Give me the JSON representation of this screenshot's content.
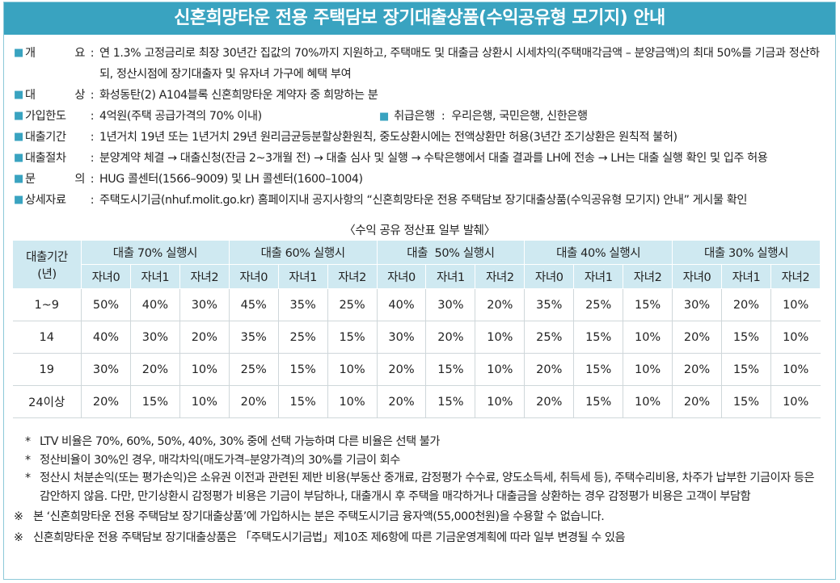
{
  "title": "신혼희망타운 전용 주택담보 장기대출상품(수익공유형 모기지) 안내",
  "info": [
    {
      "label": [
        "개",
        "요"
      ],
      "text": "연 1.3% 고정금리로 최장 30년간 집값의 70%까지 지원하고, 주택매도 및 대출금 상환시 시세차익(주택매각금액 – 분양금액)의 최대 50%를 기금과 정산하되, 정산시점에 장기대출자 및 유자녀 가구에 혜택 부여"
    },
    {
      "label": [
        "대",
        "상"
      ],
      "text": "화성동탄(2) A104블록 신혼희망타운 계약자 중 희망하는 분"
    },
    {
      "label": [
        "가입한도"
      ],
      "text": "4억원(주택 공급가격의 70% 이내)",
      "extra_label": "취급은행",
      "extra_text": "우리은행, 국민은행, 신한은행"
    },
    {
      "label": [
        "대출기간"
      ],
      "text": "1년거치 19년 또는 1년거치 29년 원리금균등분할상환원칙, 중도상환시에는 전액상환만 허용(3년간 조기상환은 원칙적 불허)"
    },
    {
      "label": [
        "대출절차"
      ],
      "text": "분양계약 체결 → 대출신청(잔금 2~3개월 전) → 대출 심사 및 실행 → 수탁은행에서 대출 결과를 LH에 전송 → LH는 대출 실행 확인 및 입주 허용"
    },
    {
      "label": [
        "문",
        "의"
      ],
      "text": "HUG 콜센터(1566–9009) 및 LH 콜센터(1600–1004)"
    },
    {
      "label": [
        "상세자료"
      ],
      "text": "주택도시기금(nhuf.molit.go.kr) 홈페이지내 공지사항의 “신혼희망타운 전용 주택담보 장기대출상품(수익공유형 모기지) 안내” 게시물 확인"
    }
  ],
  "square": "■",
  "colon": ":",
  "table": {
    "caption": "〈수익 공유 정산표 일부 발췌〉",
    "row_header": [
      "대출기간",
      "(년)"
    ],
    "groups": [
      "대출 70% 실행시",
      "대출 60% 실행시",
      "대출  50% 실행시",
      "대출 40% 실행시",
      "대출 30% 실행시"
    ],
    "subheaders": [
      "자녀0",
      "자녀1",
      "자녀2"
    ],
    "rows": [
      {
        "period": "1~9",
        "values": [
          "50%",
          "40%",
          "30%",
          "45%",
          "35%",
          "25%",
          "40%",
          "30%",
          "20%",
          "35%",
          "25%",
          "15%",
          "30%",
          "20%",
          "10%"
        ]
      },
      {
        "period": "14",
        "values": [
          "40%",
          "30%",
          "20%",
          "35%",
          "25%",
          "15%",
          "30%",
          "20%",
          "10%",
          "25%",
          "15%",
          "10%",
          "20%",
          "15%",
          "10%"
        ]
      },
      {
        "period": "19",
        "values": [
          "30%",
          "20%",
          "10%",
          "25%",
          "15%",
          "10%",
          "20%",
          "15%",
          "10%",
          "20%",
          "15%",
          "10%",
          "20%",
          "15%",
          "10%"
        ]
      },
      {
        "period": "24이상",
        "values": [
          "20%",
          "15%",
          "10%",
          "20%",
          "15%",
          "10%",
          "20%",
          "15%",
          "10%",
          "20%",
          "15%",
          "10%",
          "20%",
          "15%",
          "10%"
        ]
      }
    ]
  },
  "notes": [
    {
      "marker": "*",
      "text": "LTV 비율은 70%, 60%, 50%, 40%, 30% 중에 선택 가능하며 다른 비율은 선택 불가"
    },
    {
      "marker": "*",
      "text": "정산비율이 30%인 경우, 매각차익(매도가격–분양가격)의 30%를 기금이 회수"
    },
    {
      "marker": "*",
      "text": "정산시 처분손익(또는 평가손익)은 소유권 이전과 관련된 제반 비용(부동산 중개료, 감정평가 수수료, 양도소득세, 취득세 등), 주택수리비용, 차주가 납부한 기금이자 등은 감안하지 않음. 다만, 만기상환시 감정평가 비용은 기금이 부담하나, 대출개시 후 주택을 매각하거나 대출금을 상환하는 경우 감정평가 비용은 고객이 부담함"
    }
  ],
  "footnotes": [
    {
      "marker": "※",
      "text": "본 ‘신혼희망타운 전용 주택담보 장기대출상품’에 가입하시는 분은 주택도시기금 융자액(55,000천원)을 수용할 수 없습니다."
    },
    {
      "marker": "※",
      "text": "신혼희망타운 전용 주택담보 장기대출상품은 「주택도시기금법」제10조 제6항에 따른 기금운영계획에 따라 일부 변경될 수 있음"
    }
  ]
}
